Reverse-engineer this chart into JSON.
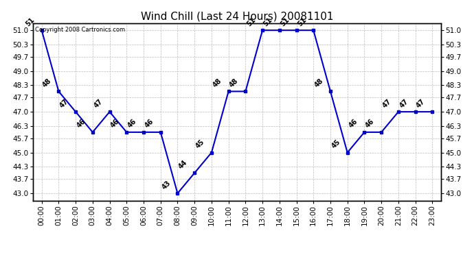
{
  "title": "Wind Chill (Last 24 Hours) 20081101",
  "copyright_text": "Copyright 2008 Cartronics.com",
  "hours": [
    0,
    1,
    2,
    3,
    4,
    5,
    6,
    7,
    8,
    9,
    10,
    11,
    12,
    13,
    14,
    15,
    16,
    17,
    18,
    19,
    20,
    21,
    22,
    23
  ],
  "values": [
    51,
    48,
    47,
    46,
    47,
    46,
    46,
    46,
    43,
    44,
    45,
    48,
    48,
    51,
    51,
    51,
    51,
    48,
    45,
    46,
    46,
    47,
    47,
    47
  ],
  "x_labels": [
    "00:00",
    "01:00",
    "02:00",
    "03:00",
    "04:00",
    "05:00",
    "06:00",
    "07:00",
    "08:00",
    "09:00",
    "10:00",
    "11:00",
    "12:00",
    "13:00",
    "14:00",
    "15:00",
    "16:00",
    "17:00",
    "18:00",
    "19:00",
    "20:00",
    "21:00",
    "22:00",
    "23:00"
  ],
  "y_ticks": [
    43.0,
    43.7,
    44.3,
    45.0,
    45.7,
    46.3,
    47.0,
    47.7,
    48.3,
    49.0,
    49.7,
    50.3,
    51.0
  ],
  "ylim_min": 42.65,
  "ylim_max": 51.35,
  "line_color": "#0000cc",
  "marker_color": "#0000cc",
  "grid_color": "#bbbbbb",
  "bg_color": "#ffffff",
  "plot_bg_color": "#ffffff",
  "title_fontsize": 11,
  "tick_fontsize": 7.5,
  "annot_fontsize": 7,
  "copyright_fontsize": 6
}
